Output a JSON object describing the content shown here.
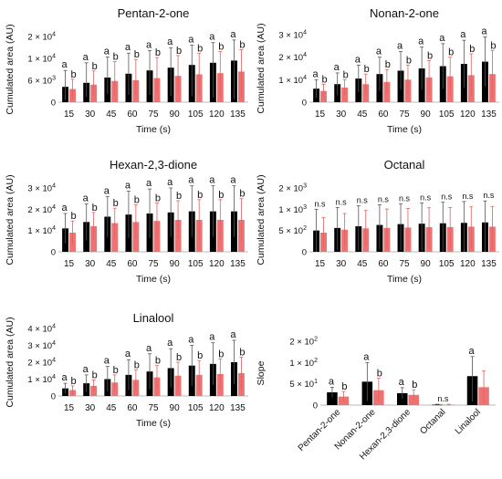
{
  "chart_data": [
    {
      "id": "pentan",
      "type": "bar",
      "title": "Pentan-2-one",
      "xlabel": "Time (s)",
      "ylabel": "Cumulated area (AU)",
      "ytick_labels": [
        "0",
        "6 × 10^3",
        "1 × 10^4",
        "2 × 10^4"
      ],
      "ytick_values": [
        0,
        6000,
        10000,
        20000
      ],
      "ylim": [
        0,
        20000
      ],
      "categories": [
        "15",
        "30",
        "45",
        "60",
        "75",
        "90",
        "105",
        "120",
        "135"
      ],
      "series": [
        {
          "color": "#000000",
          "values": [
            4200,
            5300,
            6500,
            7200,
            7800,
            8300,
            8800,
            9200,
            9600
          ],
          "errors": [
            3600,
            3900,
            4200,
            5200,
            5800,
            6600,
            7200,
            8000,
            8800
          ],
          "letters": [
            "a",
            "a",
            "a",
            "a",
            "a",
            "a",
            "a",
            "a",
            "a"
          ]
        },
        {
          "color": "#ef7272",
          "values": [
            3600,
            4800,
            5800,
            6000,
            6400,
            6800,
            7100,
            7300,
            7600
          ],
          "errors": [
            2600,
            2900,
            3600,
            3800,
            4000,
            4500,
            5200,
            5800,
            6400
          ],
          "letters": [
            "b",
            "b",
            "b",
            "b",
            "b",
            "b",
            "b",
            "b",
            "b"
          ]
        }
      ]
    },
    {
      "id": "nonan",
      "type": "bar",
      "title": "Nonan-2-one",
      "xlabel": "Time (s)",
      "ylabel": "Cumulated area (AU)",
      "ytick_labels": [
        "0",
        "1 × 10^4",
        "2 × 10^4",
        "3 × 10^4"
      ],
      "ytick_values": [
        0,
        10000,
        20000,
        30000
      ],
      "ylim": [
        0,
        30000
      ],
      "categories": [
        "15",
        "30",
        "45",
        "60",
        "75",
        "90",
        "105",
        "120",
        "135"
      ],
      "series": [
        {
          "color": "#000000",
          "values": [
            6000,
            8000,
            10500,
            12500,
            14000,
            15000,
            16000,
            17000,
            18000
          ],
          "errors": [
            4000,
            5000,
            6000,
            7500,
            8500,
            9500,
            10000,
            10500,
            11000
          ],
          "letters": [
            "a",
            "a",
            "a",
            "a",
            "a",
            "a",
            "a",
            "a",
            "a"
          ]
        },
        {
          "color": "#ef7272",
          "values": [
            5000,
            6500,
            8000,
            9000,
            10000,
            11000,
            11500,
            12000,
            12500
          ],
          "errors": [
            3000,
            3500,
            4500,
            5500,
            6500,
            7500,
            8500,
            9500,
            10500
          ],
          "letters": [
            "b",
            "b",
            "b",
            "b",
            "b",
            "b",
            "b",
            "b",
            "b"
          ]
        }
      ]
    },
    {
      "id": "hexan",
      "type": "bar",
      "title": "Hexan-2,3-dione",
      "xlabel": "Time (s)",
      "ylabel": "Cumulated area (AU)",
      "ytick_labels": [
        "0",
        "1 × 10^4",
        "2 × 10^4",
        "3 × 10^4"
      ],
      "ytick_values": [
        0,
        10000,
        20000,
        30000
      ],
      "ylim": [
        0,
        30000
      ],
      "categories": [
        "15",
        "30",
        "45",
        "60",
        "75",
        "90",
        "105",
        "120",
        "135"
      ],
      "series": [
        {
          "color": "#000000",
          "values": [
            11000,
            14000,
            16500,
            17500,
            18000,
            18500,
            19000,
            19000,
            19000
          ],
          "errors": [
            7000,
            8500,
            9500,
            11000,
            11500,
            11500,
            12000,
            12000,
            12000
          ],
          "letters": [
            "a",
            "a",
            "a",
            "a",
            "a",
            "a",
            "a",
            "a",
            "a"
          ]
        },
        {
          "color": "#ef7272",
          "values": [
            9000,
            12000,
            13500,
            14000,
            14500,
            15000,
            15000,
            15000,
            15000
          ],
          "errors": [
            5500,
            6500,
            7000,
            8000,
            8500,
            9000,
            9500,
            9500,
            10000
          ],
          "letters": [
            "b",
            "b",
            "b",
            "b",
            "b",
            "b",
            "b",
            "b",
            "b"
          ]
        }
      ]
    },
    {
      "id": "octanal",
      "type": "bar",
      "title": "Octanal",
      "xlabel": "Time (s)",
      "ylabel": "Cumulated area (AU)",
      "ytick_labels": [
        "0",
        "5 × 10^2",
        "1 × 10^3",
        "2 × 10^3"
      ],
      "ytick_values": [
        0,
        500,
        1000,
        2000
      ],
      "ylim": [
        0,
        2000
      ],
      "categories": [
        "15",
        "30",
        "45",
        "60",
        "75",
        "90",
        "105",
        "120",
        "135"
      ],
      "series": [
        {
          "color": "#000000",
          "values": [
            500,
            560,
            600,
            630,
            650,
            660,
            670,
            680,
            690
          ],
          "errors": [
            500,
            520,
            560,
            580,
            610,
            640,
            660,
            680,
            700
          ],
          "letters": [
            "n.s",
            "n.s",
            "n.s",
            "n.s",
            "n.s",
            "n.s",
            "n.s",
            "n.s",
            "n.s"
          ]
        },
        {
          "color": "#ef7272",
          "values": [
            450,
            520,
            550,
            560,
            570,
            580,
            580,
            590,
            590
          ],
          "errors": [
            350,
            380,
            420,
            450,
            470,
            490,
            500,
            520,
            540
          ],
          "letters": [
            "",
            "",
            "",
            "",
            "",
            "",
            "",
            "",
            ""
          ]
        }
      ]
    },
    {
      "id": "linalool",
      "type": "bar",
      "title": "Linalool",
      "xlabel": "Time (s)",
      "ylabel": "Cumulated area (AU)",
      "ytick_labels": [
        "0",
        "1 × 10^4",
        "2 × 10^4",
        "3 × 10^4",
        "4 × 10^4"
      ],
      "ytick_values": [
        0,
        10000,
        20000,
        30000,
        40000
      ],
      "ylim": [
        0,
        40000
      ],
      "categories": [
        "15",
        "30",
        "45",
        "60",
        "75",
        "90",
        "105",
        "120",
        "135"
      ],
      "series": [
        {
          "color": "#000000",
          "values": [
            4500,
            7500,
            10000,
            12500,
            14500,
            16500,
            18000,
            19000,
            20000
          ],
          "errors": [
            3000,
            5000,
            7500,
            9000,
            10500,
            11500,
            12000,
            12500,
            13000
          ],
          "letters": [
            "a",
            "a",
            "a",
            "a",
            "a",
            "a",
            "a",
            "a",
            "a"
          ]
        },
        {
          "color": "#ef7272",
          "values": [
            3500,
            6000,
            8000,
            9500,
            11000,
            12000,
            12500,
            13000,
            13500
          ],
          "errors": [
            2500,
            3500,
            4500,
            6000,
            7000,
            8000,
            8500,
            9000,
            9500
          ],
          "letters": [
            "b",
            "b",
            "b",
            "b",
            "b",
            "b",
            "b",
            "b",
            "b"
          ]
        }
      ]
    },
    {
      "id": "slope",
      "type": "bar",
      "title": "",
      "xlabel": "",
      "ylabel": "Slope",
      "ytick_labels": [
        "0",
        "5 × 10^1",
        "1 × 10^2",
        "2 × 10^2"
      ],
      "ytick_values": [
        0,
        50,
        100,
        200
      ],
      "ylim": [
        0,
        200
      ],
      "categories": [
        "Pentan-2-one",
        "Nonan-2-one",
        "Hexan-2,3-dione",
        "Octanal",
        "Linalool"
      ],
      "series": [
        {
          "color": "#000000",
          "values": [
            30,
            55,
            28,
            1,
            68
          ],
          "errors": [
            12,
            45,
            13,
            1,
            60
          ],
          "letters": [
            "a",
            "a",
            "a",
            "n.s",
            "a"
          ]
        },
        {
          "color": "#ef7272",
          "values": [
            20,
            35,
            24,
            1,
            42
          ],
          "errors": [
            12,
            28,
            12,
            1,
            38
          ],
          "letters": [
            "b",
            "b",
            "b",
            "",
            ""
          ]
        }
      ]
    }
  ]
}
